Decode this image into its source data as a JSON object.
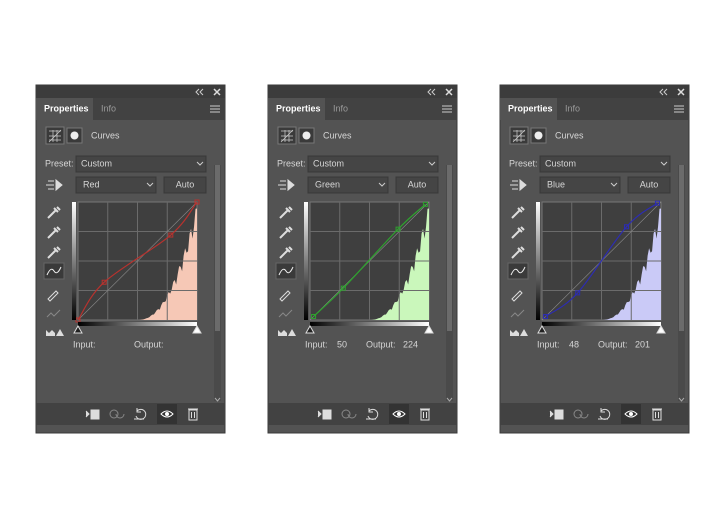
{
  "panels": [
    {
      "tabs": [
        "Properties",
        "Info"
      ],
      "adjustment": "Curves",
      "preset_label": "Preset:",
      "preset": "Custom",
      "channel": "Red",
      "auto": "Auto",
      "input_label": "Input:",
      "output_label": "Output:"
    },
    {
      "tabs": [
        "Properties",
        "Info"
      ],
      "adjustment": "Curves",
      "preset_label": "Preset:",
      "preset": "Custom",
      "channel": "Green",
      "auto": "Auto",
      "input_label": "Input:",
      "input_value": 50,
      "output_label": "Output:",
      "output_value": 224
    },
    {
      "tabs": [
        "Properties",
        "Info"
      ],
      "adjustment": "Curves",
      "preset_label": "Preset:",
      "preset": "Custom",
      "channel": "Blue",
      "auto": "Auto",
      "input_label": "Input:",
      "input_value": 48,
      "output_label": "Output:",
      "output_value": 201
    }
  ]
}
